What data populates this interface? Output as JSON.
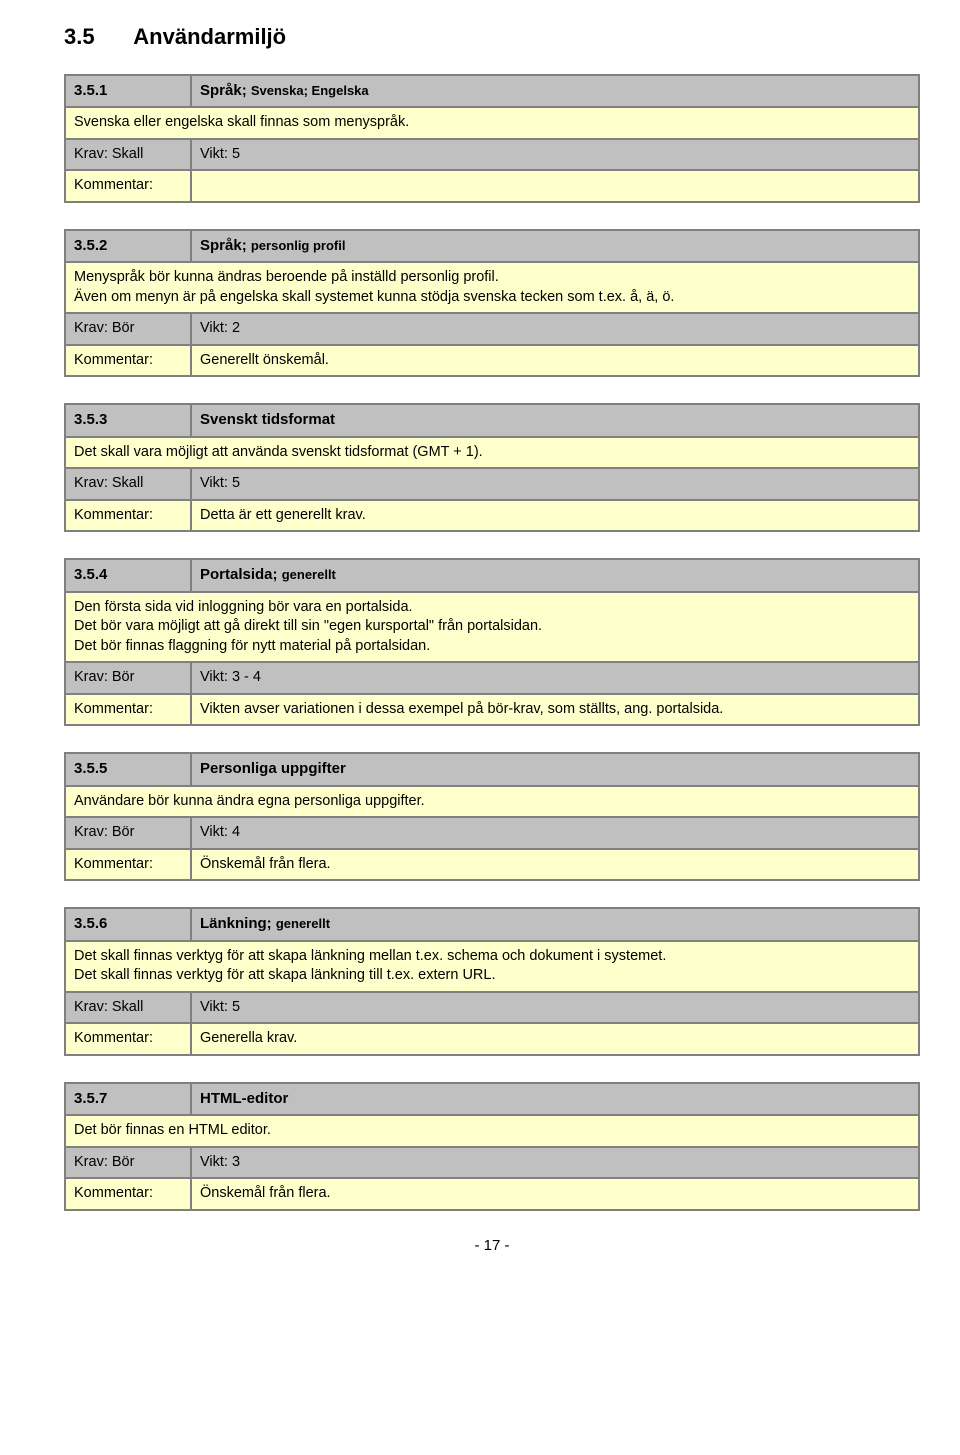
{
  "colors": {
    "header_bg": "#c0c0c0",
    "body_bg": "#ffffcc",
    "border": "#808080",
    "page_bg": "#ffffff",
    "text": "#000000"
  },
  "page_title": {
    "number": "3.5",
    "text": "Användarmiljö"
  },
  "page_number": "- 17 -",
  "sections": [
    {
      "num": "3.5.1",
      "title_main": "Språk;",
      "title_sub": "Svenska; Engelska",
      "body": [
        "Svenska eller engelska skall finnas som menyspråk."
      ],
      "krav_label": "Krav: Skall",
      "vikt_label": "Vikt: 5",
      "komm_label": "Kommentar:",
      "komm_text": ""
    },
    {
      "num": "3.5.2",
      "title_main": "Språk;",
      "title_sub": "personlig profil",
      "body": [
        "Menyspråk bör kunna ändras beroende på inställd personlig profil.",
        "Även om menyn är på engelska skall systemet kunna stödja svenska tecken som t.ex. å, ä, ö."
      ],
      "krav_label": "Krav: Bör",
      "vikt_label": "Vikt: 2",
      "komm_label": "Kommentar:",
      "komm_text": "Generellt önskemål."
    },
    {
      "num": "3.5.3",
      "title_main": "Svenskt tidsformat",
      "title_sub": "",
      "body": [
        "Det skall vara möjligt att använda svenskt tidsformat (GMT + 1)."
      ],
      "krav_label": "Krav: Skall",
      "vikt_label": "Vikt: 5",
      "komm_label": "Kommentar:",
      "komm_text": "Detta är ett generellt krav."
    },
    {
      "num": "3.5.4",
      "title_main": "Portalsida;",
      "title_sub": "generellt",
      "body": [
        "Den första sida vid inloggning bör vara en portalsida.",
        "Det bör vara möjligt att gå direkt till sin \"egen kursportal\" från portalsidan.",
        "Det bör finnas flaggning för nytt material på portalsidan."
      ],
      "krav_label": "Krav: Bör",
      "vikt_label": "Vikt: 3 - 4",
      "komm_label": "Kommentar:",
      "komm_text": "Vikten avser variationen i dessa exempel på bör-krav, som ställts, ang. portalsida."
    },
    {
      "num": "3.5.5",
      "title_main": "Personliga uppgifter",
      "title_sub": "",
      "body": [
        "Användare bör kunna ändra egna personliga uppgifter."
      ],
      "krav_label": "Krav: Bör",
      "vikt_label": "Vikt: 4",
      "komm_label": "Kommentar:",
      "komm_text": "Önskemål från flera."
    },
    {
      "num": "3.5.6",
      "title_main": "Länkning;",
      "title_sub": "generellt",
      "body": [
        "Det skall finnas verktyg för att skapa länkning mellan t.ex. schema och dokument i systemet.",
        "Det skall finnas verktyg för att skapa länkning till t.ex. extern URL."
      ],
      "krav_label": "Krav: Skall",
      "vikt_label": "Vikt: 5",
      "komm_label": "Kommentar:",
      "komm_text": "Generella krav."
    },
    {
      "num": "3.5.7",
      "title_main": "HTML-editor",
      "title_sub": "",
      "body": [
        "Det bör finnas en HTML editor."
      ],
      "krav_label": "Krav: Bör",
      "vikt_label": "Vikt: 3",
      "komm_label": "Kommentar:",
      "komm_text": "Önskemål från flera."
    }
  ]
}
